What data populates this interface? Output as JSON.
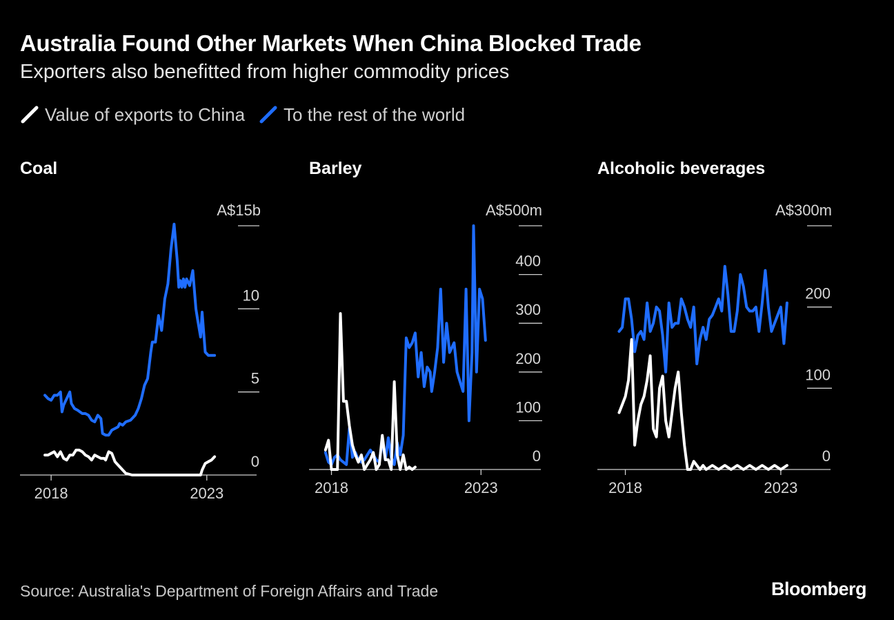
{
  "title": "Australia Found Other Markets When China Blocked Trade",
  "subtitle": "Exporters also benefitted from higher commodity prices",
  "legend": [
    {
      "label": "Value of exports to China",
      "color": "#ffffff"
    },
    {
      "label": "To the rest of the world",
      "color": "#1f6dff"
    }
  ],
  "colors": {
    "china": "#ffffff",
    "world": "#1f6dff",
    "background": "#000000"
  },
  "source": "Source: Australia's Department of Foreign Affairs and Trade",
  "brand": "Bloomberg",
  "chart_data": [
    {
      "type": "line",
      "title": "Coal",
      "unit_label": "A$15b",
      "x_ticks": [
        "2018",
        "2023"
      ],
      "x_tick_values": [
        2018,
        2023
      ],
      "xlim": [
        2017.0,
        2024.6
      ],
      "y_ticks": [
        0,
        5,
        10
      ],
      "y_tick_labels": [
        "0",
        "5",
        "10"
      ],
      "ylim": [
        0,
        15
      ],
      "series": [
        {
          "name": "To the rest of the world",
          "x": [
            2017.8,
            2017.9,
            2018.0,
            2018.1,
            2018.2,
            2018.3,
            2018.35,
            2018.4,
            2018.5,
            2018.6,
            2018.65,
            2018.75,
            2018.85,
            2019.0,
            2019.1,
            2019.2,
            2019.3,
            2019.4,
            2019.5,
            2019.6,
            2019.65,
            2019.75,
            2019.85,
            2019.95,
            2020.05,
            2020.15,
            2020.2,
            2020.3,
            2020.4,
            2020.55,
            2020.7,
            2020.8,
            2020.9,
            2021.0,
            2021.1,
            2021.2,
            2021.25,
            2021.35,
            2021.45,
            2021.55,
            2021.65,
            2021.75,
            2021.85,
            2021.95,
            2022.05,
            2022.1,
            2022.15,
            2022.2,
            2022.25,
            2022.3,
            2022.35,
            2022.45,
            2022.55,
            2022.65,
            2022.7,
            2022.8,
            2022.85,
            2022.95,
            2023.05,
            2023.15,
            2023.25
          ],
          "values": [
            4.8,
            4.6,
            4.5,
            4.8,
            4.8,
            5.0,
            3.8,
            4.2,
            4.6,
            5.0,
            4.3,
            4.0,
            3.9,
            3.7,
            3.7,
            3.6,
            3.3,
            3.2,
            3.6,
            3.4,
            2.5,
            2.4,
            2.4,
            2.7,
            2.8,
            2.9,
            3.1,
            3.0,
            3.2,
            3.3,
            3.6,
            4.0,
            4.6,
            5.4,
            5.8,
            7.4,
            8.0,
            8.0,
            9.6,
            8.7,
            10.6,
            11.5,
            13.6,
            15.1,
            12.9,
            11.3,
            11.7,
            11.3,
            11.8,
            11.3,
            11.8,
            11.4,
            12.3,
            10.0,
            9.4,
            8.3,
            9.8,
            7.4,
            7.2,
            7.2,
            7.2
          ],
          "color": "#1f6dff"
        },
        {
          "name": "Value of exports to China",
          "x": [
            2017.8,
            2017.9,
            2018.0,
            2018.1,
            2018.2,
            2018.3,
            2018.4,
            2018.5,
            2018.6,
            2018.7,
            2018.8,
            2018.9,
            2019.0,
            2019.1,
            2019.2,
            2019.3,
            2019.4,
            2019.5,
            2019.6,
            2019.7,
            2019.75,
            2019.85,
            2019.95,
            2020.05,
            2020.2,
            2020.4,
            2020.6,
            2020.8,
            2021.0,
            2021.2,
            2021.4,
            2021.6,
            2021.8,
            2022.0,
            2022.2,
            2022.4,
            2022.6,
            2022.8,
            2022.85,
            2022.95,
            2023.05,
            2023.15,
            2023.25
          ],
          "values": [
            1.2,
            1.2,
            1.3,
            1.4,
            1.1,
            1.4,
            1.0,
            0.9,
            1.2,
            1.2,
            1.5,
            1.5,
            1.4,
            1.2,
            1.1,
            0.9,
            1.2,
            1.1,
            1.0,
            1.0,
            0.9,
            1.4,
            1.3,
            0.8,
            0.5,
            0.1,
            0.0,
            0.0,
            0.0,
            0.0,
            0.0,
            0.0,
            0.0,
            0.0,
            0.0,
            0.0,
            0.0,
            0.0,
            0.3,
            0.7,
            0.8,
            0.9,
            1.1
          ],
          "color": "#ffffff"
        }
      ]
    },
    {
      "type": "line",
      "title": "Barley",
      "unit_label": "A$500m",
      "x_ticks": [
        "2018",
        "2023"
      ],
      "x_tick_values": [
        2018,
        2023
      ],
      "xlim": [
        2017.25,
        2025.0
      ],
      "y_ticks": [
        0,
        100,
        200,
        300,
        400
      ],
      "y_tick_labels": [
        "0",
        "100",
        "200",
        "300",
        "400"
      ],
      "ylim": [
        0,
        500
      ],
      "series": [
        {
          "name": "To the rest of the world",
          "x": [
            2017.8,
            2017.9,
            2018.0,
            2018.1,
            2018.2,
            2018.3,
            2018.4,
            2018.5,
            2018.6,
            2018.7,
            2018.8,
            2018.9,
            2019.0,
            2019.1,
            2019.2,
            2019.3,
            2019.4,
            2019.5,
            2019.6,
            2019.7,
            2019.8,
            2019.9,
            2020.0,
            2020.1,
            2020.2,
            2020.3,
            2020.4,
            2020.5,
            2020.6,
            2020.7,
            2020.8,
            2020.9,
            2021.0,
            2021.1,
            2021.2,
            2021.3,
            2021.35,
            2021.45,
            2021.55,
            2021.65,
            2021.75,
            2021.85,
            2021.95,
            2022.1,
            2022.2,
            2022.3,
            2022.4,
            2022.5,
            2022.6,
            2022.7,
            2022.75,
            2022.85,
            2022.95,
            2023.05,
            2023.15
          ],
          "values": [
            35,
            15,
            10,
            25,
            30,
            20,
            15,
            10,
            85,
            25,
            35,
            20,
            15,
            20,
            30,
            40,
            30,
            20,
            15,
            60,
            20,
            65,
            25,
            10,
            55,
            30,
            70,
            270,
            250,
            260,
            280,
            190,
            240,
            170,
            210,
            200,
            160,
            200,
            250,
            370,
            220,
            300,
            240,
            260,
            200,
            180,
            160,
            370,
            100,
            240,
            500,
            200,
            370,
            350,
            265
          ],
          "color": "#1f6dff"
        },
        {
          "name": "Value of exports to China",
          "x": [
            2017.8,
            2017.9,
            2018.0,
            2018.1,
            2018.2,
            2018.3,
            2018.4,
            2018.5,
            2018.6,
            2018.7,
            2018.8,
            2018.9,
            2019.0,
            2019.1,
            2019.2,
            2019.3,
            2019.4,
            2019.5,
            2019.6,
            2019.7,
            2019.8,
            2019.9,
            2020.0,
            2020.1,
            2020.2,
            2020.3,
            2020.4,
            2020.5,
            2020.6,
            2020.7,
            2020.8
          ],
          "values": [
            40,
            60,
            0,
            0,
            0,
            320,
            140,
            140,
            90,
            50,
            30,
            15,
            30,
            0,
            10,
            20,
            35,
            0,
            10,
            70,
            20,
            20,
            0,
            180,
            30,
            0,
            30,
            0,
            5,
            0,
            5
          ],
          "color": "#ffffff"
        }
      ]
    },
    {
      "type": "line",
      "title": "Alcoholic beverages",
      "unit_label": "A$300m",
      "x_ticks": [
        "2018",
        "2023"
      ],
      "x_tick_values": [
        2018,
        2023
      ],
      "xlim": [
        2017.1,
        2024.6
      ],
      "y_ticks": [
        0,
        100,
        200
      ],
      "y_tick_labels": [
        "0",
        "100",
        "200"
      ],
      "ylim": [
        0,
        300
      ],
      "series": [
        {
          "name": "To the rest of the world",
          "x": [
            2017.8,
            2017.9,
            2018.0,
            2018.1,
            2018.2,
            2018.3,
            2018.4,
            2018.5,
            2018.6,
            2018.7,
            2018.8,
            2018.9,
            2019.0,
            2019.1,
            2019.2,
            2019.3,
            2019.4,
            2019.5,
            2019.6,
            2019.7,
            2019.8,
            2019.9,
            2020.0,
            2020.1,
            2020.2,
            2020.3,
            2020.4,
            2020.5,
            2020.6,
            2020.7,
            2020.8,
            2020.9,
            2021.0,
            2021.1,
            2021.2,
            2021.3,
            2021.4,
            2021.5,
            2021.6,
            2021.7,
            2021.8,
            2021.9,
            2022.0,
            2022.1,
            2022.2,
            2022.3,
            2022.4,
            2022.5,
            2022.6,
            2022.7,
            2022.8,
            2022.9,
            2023.0,
            2023.1,
            2023.2
          ],
          "values": [
            170,
            175,
            210,
            210,
            185,
            145,
            165,
            170,
            160,
            205,
            170,
            180,
            200,
            195,
            165,
            120,
            205,
            175,
            180,
            180,
            210,
            200,
            185,
            175,
            200,
            130,
            160,
            175,
            160,
            185,
            190,
            200,
            210,
            195,
            250,
            215,
            170,
            170,
            195,
            240,
            225,
            200,
            195,
            195,
            200,
            170,
            205,
            245,
            200,
            170,
            180,
            190,
            200,
            155,
            205
          ],
          "color": "#1f6dff"
        },
        {
          "name": "Value of exports to China",
          "x": [
            2017.8,
            2017.9,
            2018.0,
            2018.1,
            2018.2,
            2018.3,
            2018.4,
            2018.5,
            2018.6,
            2018.7,
            2018.8,
            2018.9,
            2019.0,
            2019.1,
            2019.2,
            2019.3,
            2019.4,
            2019.5,
            2019.6,
            2019.7,
            2019.8,
            2019.9,
            2020.0,
            2020.1,
            2020.2,
            2020.3,
            2020.4,
            2020.5,
            2020.6,
            2020.8,
            2021.0,
            2021.2,
            2021.4,
            2021.6,
            2021.8,
            2022.0,
            2022.2,
            2022.4,
            2022.6,
            2022.8,
            2023.0,
            2023.2
          ],
          "values": [
            70,
            80,
            90,
            110,
            160,
            30,
            60,
            80,
            90,
            110,
            140,
            50,
            40,
            100,
            115,
            60,
            40,
            70,
            100,
            120,
            70,
            30,
            0,
            0,
            10,
            5,
            0,
            5,
            0,
            5,
            0,
            5,
            0,
            5,
            0,
            5,
            0,
            5,
            0,
            5,
            0,
            5
          ],
          "color": "#ffffff"
        }
      ]
    }
  ]
}
